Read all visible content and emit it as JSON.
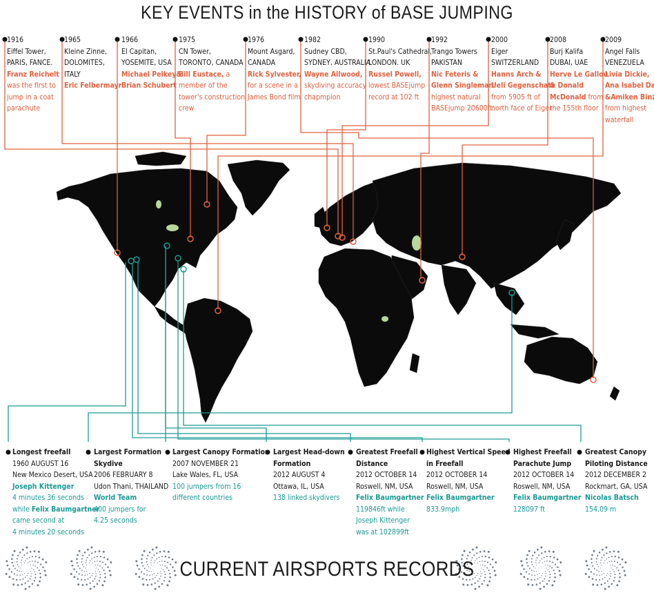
{
  "header": {
    "title": "KEY EVENTS in the HISTORY of BASE JUMPING"
  },
  "footer": {
    "title": "CURRENT AIRSPORTS RECORDS"
  },
  "colors": {
    "events": "#e0613f",
    "records": "#1a9a93",
    "land": "#0b0b0b",
    "lakes": "#b8d79a"
  },
  "events": [
    {
      "year": "1916",
      "place": [
        "Eiffel Tower,",
        "PARIS, FANCE."
      ],
      "highlight": [
        "Franz Reichelt"
      ],
      "text": [
        "was the first to",
        "jump in a coat",
        "parachute"
      ]
    },
    {
      "year": "1965",
      "place": [
        "Kleine Zinne,",
        "DOLOMITES,",
        "ITALY"
      ],
      "highlight": [
        "Eric Felbermayr"
      ],
      "text": []
    },
    {
      "year": "1966",
      "place": [
        "El Capitan,",
        "YOSEMITE, USA"
      ],
      "highlight": [
        "Michael Pelkey&",
        "Brian Schubert"
      ],
      "text": []
    },
    {
      "year": "1975",
      "place": [
        "CN Tower,",
        "TORONTO, CANADA"
      ],
      "highlight": [
        "Bill Eustace,"
      ],
      "text": [
        "a",
        "member of the",
        "tower's construction",
        "crew"
      ]
    },
    {
      "year": "1976",
      "place": [
        "Mount Asgard,",
        "CANADA"
      ],
      "highlight": [
        "Rick Sylvester,"
      ],
      "text": [
        "for a scene in a",
        "James Bond film"
      ]
    },
    {
      "year": "1982",
      "place": [
        "Sudney CBD,",
        "SYDNEY, AUSTRALIA"
      ],
      "highlight": [
        "Wayne Allwood,"
      ],
      "text": [
        "skydiving accuracy",
        "chapmpion"
      ]
    },
    {
      "year": "1990",
      "place": [
        "St.Paul's Cathedral,",
        "LONDON. UK"
      ],
      "highlight": [
        "Russel Powell,"
      ],
      "text": [
        "lowest BASEjump",
        "record at 102 ft"
      ]
    },
    {
      "year": "1992",
      "place": [
        "Trango Towers",
        "PAKISTAN"
      ],
      "highlight": [
        "Nic Feteris &",
        "Glenn Singleman"
      ],
      "text": [
        "highest natural",
        "BASEjump 20600ft"
      ]
    },
    {
      "year": "2000",
      "place": [
        "Eiger",
        "SWITZERLAND"
      ],
      "highlight": [
        "Hanns Arch &",
        "Ueli Gegenschatz"
      ],
      "text": [
        "from 5905 ft of",
        "north face of Eiger"
      ]
    },
    {
      "year": "2008",
      "place": [
        "Burj Kalifa",
        "DUBAI, UAE"
      ],
      "highlight": [
        "Herve Le Gallou",
        "& Donald",
        "McDonald"
      ],
      "text": [
        "from",
        "the 155th floor"
      ]
    },
    {
      "year": "2009",
      "place": [
        "Angel Falls",
        "VENEZUELA"
      ],
      "highlight": [
        "Livia Dickie,",
        "Ana Isabel Dao",
        "&Amiken Binz,"
      ],
      "text": [
        "from highest",
        "waterfall"
      ]
    }
  ],
  "records": [
    {
      "title": [
        "Longest freefall"
      ],
      "date": "1960 AUGUST 16",
      "place": "New Mexico Desert, USA",
      "lines": [
        [
          "hl",
          "Joseph Kittenger"
        ],
        [
          "tx",
          "4 minutes 36 seconds"
        ],
        [
          "mix",
          "while ",
          "Felix Baumgartner"
        ],
        [
          "tx",
          "came second at"
        ],
        [
          "tx",
          "4 minutes 20 seconds"
        ]
      ]
    },
    {
      "title": [
        "Largest Formation",
        "Skydive"
      ],
      "date": "2006 FEBRUARY 8",
      "place": "Udon Thani, THAILAND",
      "lines": [
        [
          "hl",
          "World Team"
        ],
        [
          "tx",
          "400 jumpers for"
        ],
        [
          "tx",
          "4.25 seconds"
        ]
      ]
    },
    {
      "title": [
        "Largest Canopy Formation"
      ],
      "date": "2007 NOVEMBER 21",
      "place": "Lake Wales, FL, USA",
      "lines": [
        [
          "tx",
          "100 jumpers from 16"
        ],
        [
          "tx",
          "different countries"
        ]
      ]
    },
    {
      "title": [
        "Largest Head-down",
        "Formation"
      ],
      "date": "2012 AUGUST 4",
      "place": "Ottawa, IL, USA",
      "lines": [
        [
          "tx",
          "138 linked skydivers"
        ]
      ]
    },
    {
      "title": [
        "Greatest Freefall",
        "Distance"
      ],
      "date": "2012 OCTOBER 14",
      "place": "Roswell, NM, USA",
      "lines": [
        [
          "hl",
          "Felix Baumgartner"
        ],
        [
          "tx",
          "119846ft while"
        ],
        [
          "tx",
          "Joseph Kittenger"
        ],
        [
          "tx",
          "was at 102899ft"
        ]
      ]
    },
    {
      "title": [
        "Highest Vertical Speed",
        "in Freefall"
      ],
      "date": "2012 OCTOBER 14",
      "place": "Roswell, NM, USA",
      "lines": [
        [
          "hl",
          "Felix Baumgartner"
        ],
        [
          "tx",
          "833.9mph"
        ]
      ]
    },
    {
      "title": [
        "Highest Freefall",
        "Parachute Jump"
      ],
      "date": "2012 OCTOBER 14",
      "place": "Roswell, NM, USA",
      "lines": [
        [
          "hl",
          "Felix Baumgartner"
        ],
        [
          "tx",
          "128097 ft"
        ]
      ]
    },
    {
      "title": [
        "Greatest Canopy",
        "Piloting Distance"
      ],
      "date": "2012 DECEMBER 2",
      "place": "Rockmart, GA, USA",
      "lines": [
        [
          "hl",
          "Nicolas Batsch"
        ],
        [
          "tx",
          "154.09 m"
        ]
      ]
    }
  ]
}
